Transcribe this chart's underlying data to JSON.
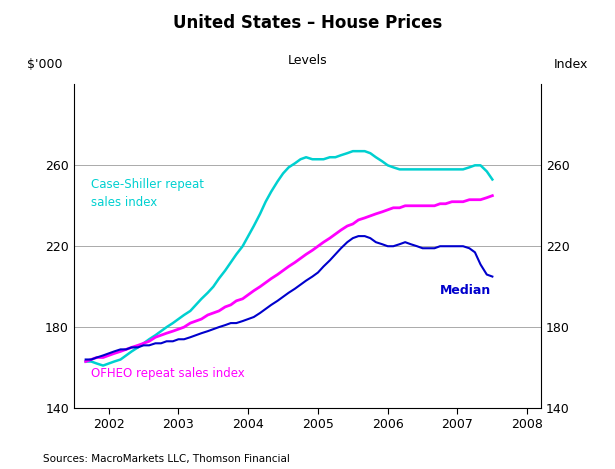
{
  "title": "United States – House Prices",
  "subtitle": "Levels",
  "ylabel_left": "$'000",
  "ylabel_right": "Index",
  "source": "Sources: MacroMarkets LLC, Thomson Financial",
  "ylim": [
    140,
    300
  ],
  "yticks": [
    140,
    180,
    220,
    260
  ],
  "xlim_start": 2001.5,
  "xlim_end": 2008.2,
  "xticks": [
    2002,
    2003,
    2004,
    2005,
    2006,
    2007,
    2008
  ],
  "bg_color": "#ffffff",
  "grid_color": "#aaaaaa",
  "case_shiller_color": "#00d0d0",
  "ofheo_color": "#ff00ff",
  "median_color": "#0000cc",
  "case_shiller_label": "Case-Shiller repeat\nsales index",
  "ofheo_label": "OFHEO repeat sales index",
  "median_label": "Median",
  "case_shiller_data": {
    "x": [
      2001.67,
      2001.75,
      2001.83,
      2001.92,
      2002.0,
      2002.08,
      2002.17,
      2002.25,
      2002.33,
      2002.42,
      2002.5,
      2002.58,
      2002.67,
      2002.75,
      2002.83,
      2002.92,
      2003.0,
      2003.08,
      2003.17,
      2003.25,
      2003.33,
      2003.42,
      2003.5,
      2003.58,
      2003.67,
      2003.75,
      2003.83,
      2003.92,
      2004.0,
      2004.08,
      2004.17,
      2004.25,
      2004.33,
      2004.42,
      2004.5,
      2004.58,
      2004.67,
      2004.75,
      2004.83,
      2004.92,
      2005.0,
      2005.08,
      2005.17,
      2005.25,
      2005.33,
      2005.42,
      2005.5,
      2005.58,
      2005.67,
      2005.75,
      2005.83,
      2005.92,
      2006.0,
      2006.08,
      2006.17,
      2006.25,
      2006.33,
      2006.42,
      2006.5,
      2006.58,
      2006.67,
      2006.75,
      2006.83,
      2006.92,
      2007.0,
      2007.08,
      2007.17,
      2007.25,
      2007.33,
      2007.42,
      2007.5
    ],
    "y": [
      163,
      163,
      162,
      161,
      162,
      163,
      164,
      166,
      168,
      170,
      172,
      174,
      176,
      178,
      180,
      182,
      184,
      186,
      188,
      191,
      194,
      197,
      200,
      204,
      208,
      212,
      216,
      220,
      225,
      230,
      236,
      242,
      247,
      252,
      256,
      259,
      261,
      263,
      264,
      263,
      263,
      263,
      264,
      264,
      265,
      266,
      267,
      267,
      267,
      266,
      264,
      262,
      260,
      259,
      258,
      258,
      258,
      258,
      258,
      258,
      258,
      258,
      258,
      258,
      258,
      258,
      259,
      260,
      260,
      257,
      253
    ]
  },
  "ofheo_data": {
    "x": [
      2001.67,
      2001.75,
      2001.83,
      2001.92,
      2002.0,
      2002.08,
      2002.17,
      2002.25,
      2002.33,
      2002.42,
      2002.5,
      2002.58,
      2002.67,
      2002.75,
      2002.83,
      2002.92,
      2003.0,
      2003.08,
      2003.17,
      2003.25,
      2003.33,
      2003.42,
      2003.5,
      2003.58,
      2003.67,
      2003.75,
      2003.83,
      2003.92,
      2004.0,
      2004.08,
      2004.17,
      2004.25,
      2004.33,
      2004.42,
      2004.5,
      2004.58,
      2004.67,
      2004.75,
      2004.83,
      2004.92,
      2005.0,
      2005.08,
      2005.17,
      2005.25,
      2005.33,
      2005.42,
      2005.5,
      2005.58,
      2005.67,
      2005.75,
      2005.83,
      2005.92,
      2006.0,
      2006.08,
      2006.17,
      2006.25,
      2006.33,
      2006.42,
      2006.5,
      2006.58,
      2006.67,
      2006.75,
      2006.83,
      2006.92,
      2007.0,
      2007.08,
      2007.17,
      2007.25,
      2007.33,
      2007.42,
      2007.5
    ],
    "y": [
      163,
      164,
      165,
      165,
      166,
      167,
      168,
      169,
      170,
      171,
      172,
      173,
      175,
      176,
      177,
      178,
      179,
      180,
      182,
      183,
      184,
      186,
      187,
      188,
      190,
      191,
      193,
      194,
      196,
      198,
      200,
      202,
      204,
      206,
      208,
      210,
      212,
      214,
      216,
      218,
      220,
      222,
      224,
      226,
      228,
      230,
      231,
      233,
      234,
      235,
      236,
      237,
      238,
      239,
      239,
      240,
      240,
      240,
      240,
      240,
      240,
      241,
      241,
      242,
      242,
      242,
      243,
      243,
      243,
      244,
      245
    ]
  },
  "median_data": {
    "x": [
      2001.67,
      2001.75,
      2001.83,
      2001.92,
      2002.0,
      2002.08,
      2002.17,
      2002.25,
      2002.33,
      2002.42,
      2002.5,
      2002.58,
      2002.67,
      2002.75,
      2002.83,
      2002.92,
      2003.0,
      2003.08,
      2003.17,
      2003.25,
      2003.33,
      2003.42,
      2003.5,
      2003.58,
      2003.67,
      2003.75,
      2003.83,
      2003.92,
      2004.0,
      2004.08,
      2004.17,
      2004.25,
      2004.33,
      2004.42,
      2004.5,
      2004.58,
      2004.67,
      2004.75,
      2004.83,
      2004.92,
      2005.0,
      2005.08,
      2005.17,
      2005.25,
      2005.33,
      2005.42,
      2005.5,
      2005.58,
      2005.67,
      2005.75,
      2005.83,
      2005.92,
      2006.0,
      2006.08,
      2006.17,
      2006.25,
      2006.33,
      2006.42,
      2006.5,
      2006.58,
      2006.67,
      2006.75,
      2006.83,
      2006.92,
      2007.0,
      2007.08,
      2007.17,
      2007.25,
      2007.33,
      2007.42,
      2007.5
    ],
    "y": [
      164,
      164,
      165,
      166,
      167,
      168,
      169,
      169,
      170,
      170,
      171,
      171,
      172,
      172,
      173,
      173,
      174,
      174,
      175,
      176,
      177,
      178,
      179,
      180,
      181,
      182,
      182,
      183,
      184,
      185,
      187,
      189,
      191,
      193,
      195,
      197,
      199,
      201,
      203,
      205,
      207,
      210,
      213,
      216,
      219,
      222,
      224,
      225,
      225,
      224,
      222,
      221,
      220,
      220,
      221,
      222,
      221,
      220,
      219,
      219,
      219,
      220,
      220,
      220,
      220,
      220,
      219,
      217,
      211,
      206,
      205
    ]
  }
}
